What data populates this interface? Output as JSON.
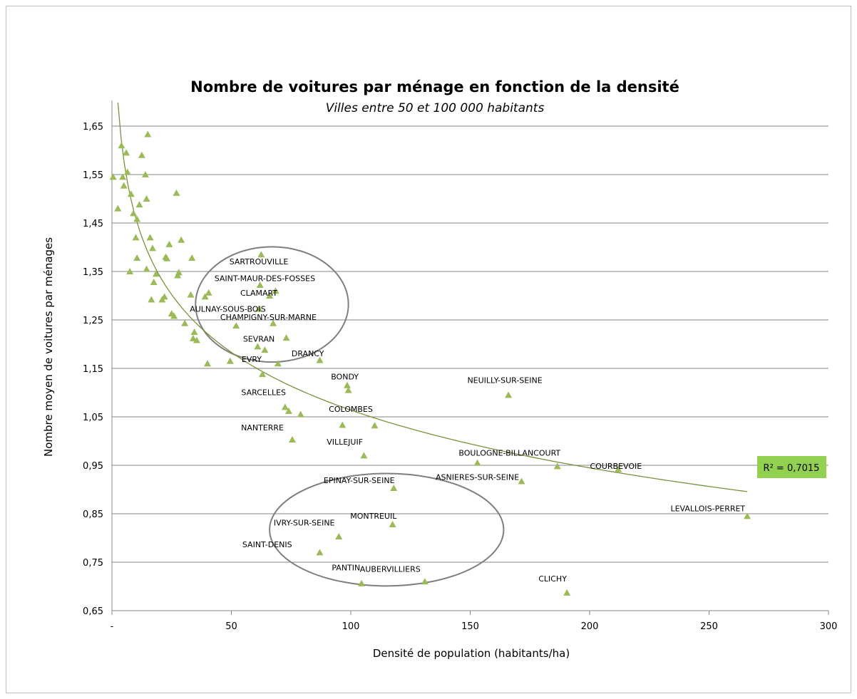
{
  "chart_data": {
    "type": "scatter",
    "title": "Nombre de voitures par ménage en fonction de la densité",
    "subtitle": "Villes entre 50 et 100 000 habitants",
    "xlabel": "Densité de population (habitants/ha)",
    "ylabel": "Nombre moyen de voitures par ménages",
    "xlim": [
      0,
      300
    ],
    "ylim": [
      0.65,
      1.7
    ],
    "x_ticks": [
      0,
      50,
      100,
      150,
      200,
      250,
      300
    ],
    "x_tick_labels": [
      "-",
      "50",
      "100",
      "150",
      "200",
      "250",
      "300"
    ],
    "y_ticks": [
      0.65,
      0.75,
      0.85,
      0.95,
      1.05,
      1.15,
      1.25,
      1.35,
      1.45,
      1.55,
      1.65
    ],
    "y_tick_labels": [
      "0,65",
      "0,75",
      "0,85",
      "0,95",
      "1,05",
      "1,15",
      "1,25",
      "1,35",
      "1,45",
      "1,55",
      "1,65"
    ],
    "grid": "horizontal",
    "marker_color": "#9bbb59",
    "trendline_color": "#77933c",
    "trendline": {
      "type": "logarithmic",
      "r2_label": "R² = 0,7015",
      "a": 1.856,
      "b": -0.172,
      "x_range": [
        2.5,
        266
      ]
    },
    "r2_box_color": "#92d050",
    "ellipse_color": "#7f7f7f",
    "ellipses": [
      {
        "cx": 67,
        "cy": 1.282,
        "rx": 32,
        "ry": 0.119
      },
      {
        "cx": 115,
        "cy": 0.817,
        "rx": 49,
        "ry": 0.116
      }
    ],
    "points": [
      {
        "x": 0.5,
        "y": 1.545
      },
      {
        "x": 2.5,
        "y": 1.48
      },
      {
        "x": 4,
        "y": 1.61
      },
      {
        "x": 4.5,
        "y": 1.545
      },
      {
        "x": 5,
        "y": 1.527
      },
      {
        "x": 6,
        "y": 1.595
      },
      {
        "x": 6.5,
        "y": 1.555
      },
      {
        "x": 7.5,
        "y": 1.35
      },
      {
        "x": 8,
        "y": 1.51
      },
      {
        "x": 9,
        "y": 1.47
      },
      {
        "x": 10,
        "y": 1.42
      },
      {
        "x": 10.5,
        "y": 1.458
      },
      {
        "x": 10.5,
        "y": 1.378
      },
      {
        "x": 11.5,
        "y": 1.488
      },
      {
        "x": 12.5,
        "y": 1.59
      },
      {
        "x": 14,
        "y": 1.55
      },
      {
        "x": 14.5,
        "y": 1.5
      },
      {
        "x": 14.5,
        "y": 1.355
      },
      {
        "x": 15,
        "y": 1.633
      },
      {
        "x": 16,
        "y": 1.42
      },
      {
        "x": 16.5,
        "y": 1.292
      },
      {
        "x": 17,
        "y": 1.398
      },
      {
        "x": 17.5,
        "y": 1.328
      },
      {
        "x": 18.5,
        "y": 1.345
      },
      {
        "x": 21,
        "y": 1.292
      },
      {
        "x": 22,
        "y": 1.298
      },
      {
        "x": 22.5,
        "y": 1.38
      },
      {
        "x": 23,
        "y": 1.377
      },
      {
        "x": 24,
        "y": 1.406
      },
      {
        "x": 25,
        "y": 1.263
      },
      {
        "x": 26,
        "y": 1.258
      },
      {
        "x": 27,
        "y": 1.512
      },
      {
        "x": 27.5,
        "y": 1.342
      },
      {
        "x": 28,
        "y": 1.348
      },
      {
        "x": 29,
        "y": 1.415
      },
      {
        "x": 30.5,
        "y": 1.243
      },
      {
        "x": 33,
        "y": 1.302
      },
      {
        "x": 33.5,
        "y": 1.378
      },
      {
        "x": 34,
        "y": 1.212
      },
      {
        "x": 34.5,
        "y": 1.225
      },
      {
        "x": 35.5,
        "y": 1.208
      },
      {
        "x": 39,
        "y": 1.298
      },
      {
        "x": 40,
        "y": 1.16
      },
      {
        "x": 40.5,
        "y": 1.306
      },
      {
        "x": 49.5,
        "y": 1.165
      },
      {
        "x": 52,
        "y": 1.238
      },
      {
        "x": 61,
        "y": 1.195
      },
      {
        "x": 61.5,
        "y": 1.273
      },
      {
        "x": 62,
        "y": 1.322
      },
      {
        "x": 62.5,
        "y": 1.385
      },
      {
        "x": 63,
        "y": 1.138
      },
      {
        "x": 64,
        "y": 1.188
      },
      {
        "x": 66,
        "y": 1.3
      },
      {
        "x": 67.5,
        "y": 1.243
      },
      {
        "x": 68.5,
        "y": 1.31
      },
      {
        "x": 69.5,
        "y": 1.16
      },
      {
        "x": 72.5,
        "y": 1.07
      },
      {
        "x": 73,
        "y": 1.213
      },
      {
        "x": 74,
        "y": 1.062
      },
      {
        "x": 75.5,
        "y": 1.003
      },
      {
        "x": 79,
        "y": 1.055
      },
      {
        "x": 87,
        "y": 1.167
      },
      {
        "x": 96.5,
        "y": 1.033
      },
      {
        "x": 98.5,
        "y": 1.115
      },
      {
        "x": 99,
        "y": 1.105
      },
      {
        "x": 105.5,
        "y": 0.97
      },
      {
        "x": 110,
        "y": 1.032
      },
      {
        "x": 118,
        "y": 0.903
      },
      {
        "x": 117.5,
        "y": 0.828
      },
      {
        "x": 95,
        "y": 0.803
      },
      {
        "x": 87,
        "y": 0.77
      },
      {
        "x": 104.5,
        "y": 0.706
      },
      {
        "x": 131,
        "y": 0.71
      },
      {
        "x": 153,
        "y": 0.955
      },
      {
        "x": 166,
        "y": 1.095
      },
      {
        "x": 171.5,
        "y": 0.917
      },
      {
        "x": 186.5,
        "y": 0.948
      },
      {
        "x": 190.5,
        "y": 0.687
      },
      {
        "x": 212,
        "y": 0.942
      },
      {
        "x": 266,
        "y": 0.845
      }
    ],
    "annotations": [
      {
        "text": "SARTROUVILLE",
        "x": 61.5,
        "y": 1.365
      },
      {
        "text": "SAINT-MAUR-DES-FOSSES",
        "x": 64,
        "y": 1.33
      },
      {
        "text": "CLAMART",
        "x": 61.5,
        "y": 1.3
      },
      {
        "text": "AULNAY-SOUS-BOIS",
        "x": 48.5,
        "y": 1.267
      },
      {
        "text": "CHAMPIGNY-SUR-MARNE",
        "x": 65.5,
        "y": 1.25
      },
      {
        "text": "SEVRAN",
        "x": 61.5,
        "y": 1.205
      },
      {
        "text": "DRANCY",
        "x": 82,
        "y": 1.175
      },
      {
        "text": "EVRY",
        "x": 58.5,
        "y": 1.163
      },
      {
        "text": "BONDY",
        "x": 97.5,
        "y": 1.127
      },
      {
        "text": "NEUILLY-SUR-SEINE",
        "x": 164.5,
        "y": 1.12
      },
      {
        "text": "SARCELLES",
        "x": 63.5,
        "y": 1.095
      },
      {
        "text": "COLOMBES",
        "x": 100,
        "y": 1.06
      },
      {
        "text": "NANTERRE",
        "x": 63,
        "y": 1.022
      },
      {
        "text": "VILLEJUIF",
        "x": 97.5,
        "y": 0.993
      },
      {
        "text": "BOULOGNE-BILLANCOURT",
        "x": 166.5,
        "y": 0.97
      },
      {
        "text": "COURBEVOIE",
        "x": 211,
        "y": 0.943
      },
      {
        "text": "ASNIERES-SUR-SEINE",
        "x": 153,
        "y": 0.92
      },
      {
        "text": "EPINAY-SUR-SEINE",
        "x": 103.5,
        "y": 0.913
      },
      {
        "text": "LEVALLOIS-PERRET",
        "x": 249.5,
        "y": 0.855
      },
      {
        "text": "MONTREUIL",
        "x": 109.5,
        "y": 0.84
      },
      {
        "text": "IVRY-SUR-SEINE",
        "x": 80.5,
        "y": 0.826
      },
      {
        "text": "SAINT-DENIS",
        "x": 65,
        "y": 0.781
      },
      {
        "text": "PANTIN",
        "x": 98,
        "y": 0.733
      },
      {
        "text": "AUBERVILLIERS",
        "x": 116.5,
        "y": 0.73
      },
      {
        "text": "CLICHY",
        "x": 184.5,
        "y": 0.71
      }
    ]
  }
}
